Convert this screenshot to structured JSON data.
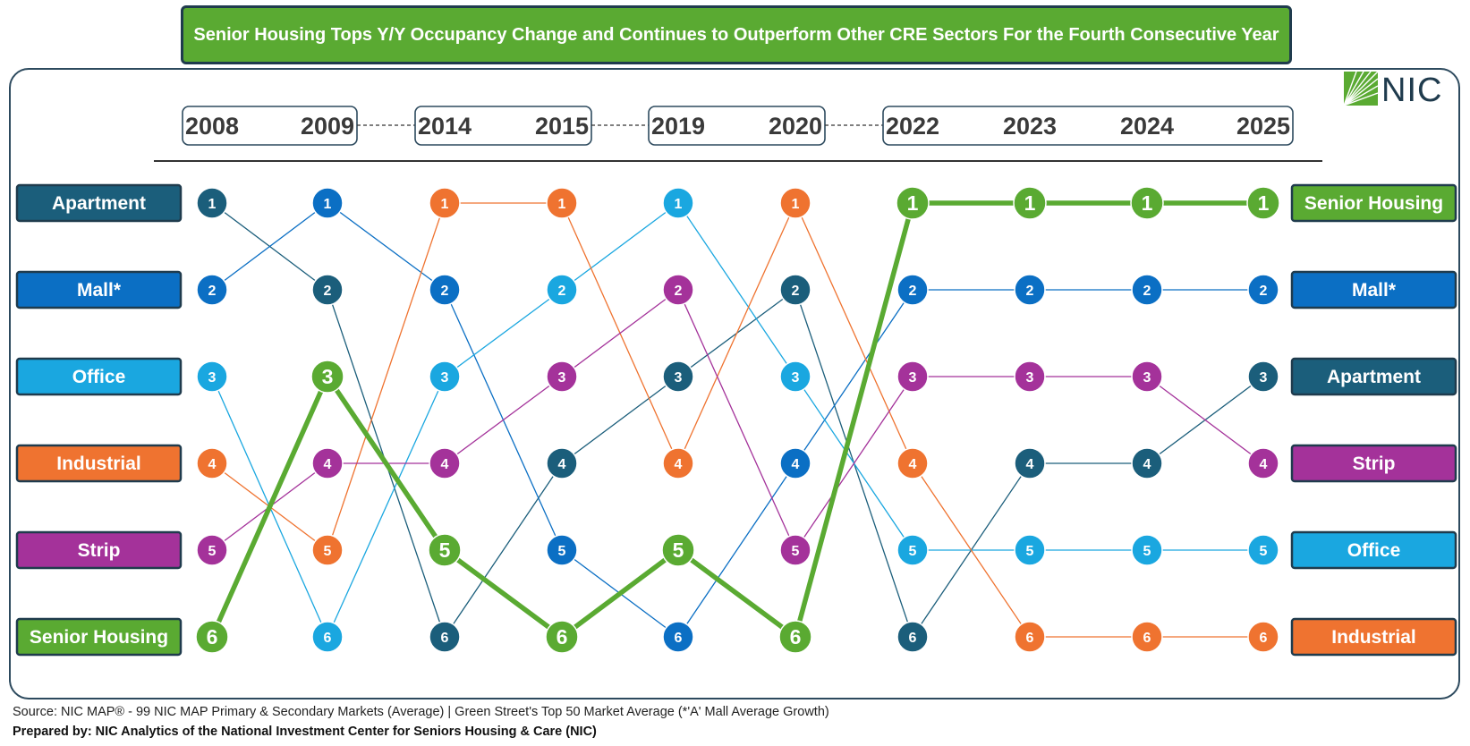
{
  "title": "Senior Housing Tops Y/Y Occupancy Change and Continues to Outperform Other CRE Sectors For the Fourth Consecutive Year",
  "logo": {
    "text": "NIC",
    "icon": "nic-leaf-icon"
  },
  "source": "Source: NIC MAP® -  99 NIC MAP Primary & Secondary Markets (Average) | Green Street's Top 50 Market Average (*'A' Mall Average Growth)",
  "prepared_by": "Prepared by: NIC Analytics of the National Investment Center for Seniors Housing & Care (NIC)",
  "colors": {
    "Apartment": "#1b5e7b",
    "Mall*": "#0b6fc4",
    "Office": "#1aa7e0",
    "Industrial": "#ef7330",
    "Strip": "#a4329a",
    "Senior Housing": "#5aaa32"
  },
  "chart_data": {
    "type": "bump",
    "x": [
      "2008",
      "2009",
      "2014",
      "2015",
      "2019",
      "2020",
      "2022",
      "2023",
      "2024",
      "2025"
    ],
    "year_groups": [
      [
        "2008",
        "2009"
      ],
      [
        "2014",
        "2015"
      ],
      [
        "2019",
        "2020"
      ],
      [
        "2022",
        "2023",
        "2024",
        "2025"
      ]
    ],
    "left_labels": [
      "Apartment",
      "Mall*",
      "Office",
      "Industrial",
      "Strip",
      "Senior Housing"
    ],
    "right_labels": [
      "Senior Housing",
      "Mall*",
      "Apartment",
      "Strip",
      "Office",
      "Industrial"
    ],
    "series": [
      {
        "name": "Apartment",
        "values": [
          1,
          2,
          6,
          4,
          3,
          2,
          6,
          4,
          4,
          3
        ]
      },
      {
        "name": "Mall*",
        "values": [
          2,
          1,
          2,
          5,
          6,
          4,
          2,
          2,
          2,
          2
        ]
      },
      {
        "name": "Office",
        "values": [
          3,
          6,
          3,
          2,
          1,
          3,
          5,
          5,
          5,
          5
        ]
      },
      {
        "name": "Industrial",
        "values": [
          4,
          5,
          1,
          1,
          4,
          1,
          4,
          6,
          6,
          6
        ]
      },
      {
        "name": "Strip",
        "values": [
          5,
          4,
          4,
          3,
          2,
          5,
          3,
          3,
          3,
          4
        ]
      },
      {
        "name": "Senior Housing",
        "values": [
          6,
          3,
          5,
          6,
          5,
          6,
          1,
          1,
          1,
          1
        ]
      }
    ],
    "highlight": "Senior Housing",
    "ylim": [
      1,
      6
    ],
    "y_inverted": true
  }
}
